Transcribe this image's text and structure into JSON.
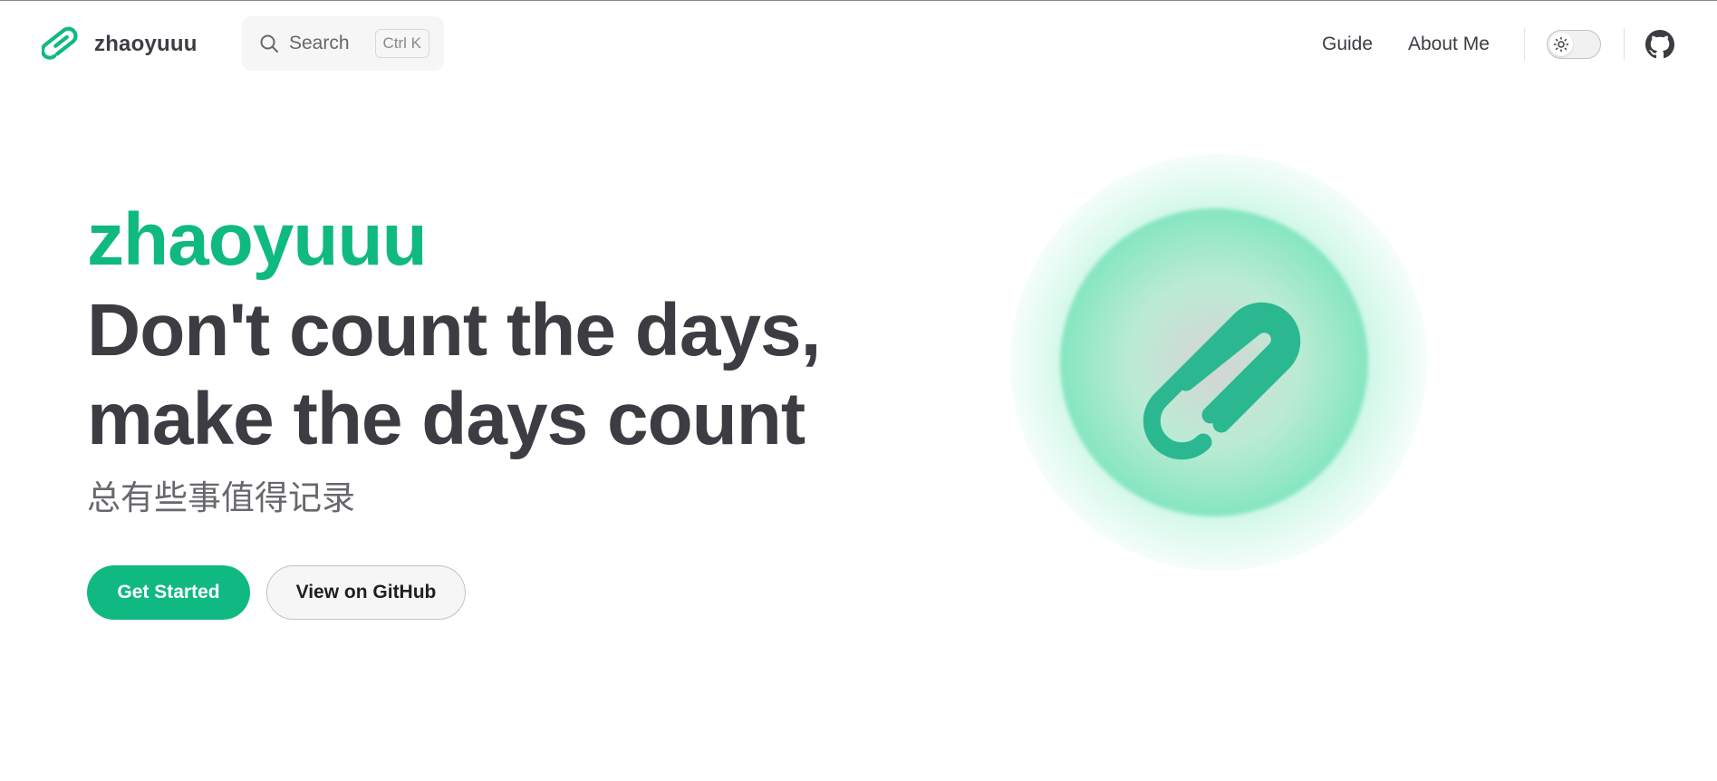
{
  "nav": {
    "brand_title": "zhaoyuuu",
    "search_label": "Search",
    "search_shortcut": "Ctrl K",
    "links": [
      "Guide",
      "About Me"
    ],
    "icons": [
      "paperclip-icon",
      "search-icon",
      "sun-icon",
      "github-icon"
    ]
  },
  "hero": {
    "name": "zhaoyuuu",
    "text_line1": "Don't count the days,",
    "text_line2": "make the days count",
    "tagline": "总有些事值得记录",
    "actions": [
      {
        "label": "Get Started",
        "style": "brand"
      },
      {
        "label": "View on GitHub",
        "style": "alt"
      }
    ]
  },
  "colors": {
    "brand": "#10b981",
    "text": "#3c3c43",
    "muted": "#67676c",
    "glow": "#6ee7b7"
  }
}
